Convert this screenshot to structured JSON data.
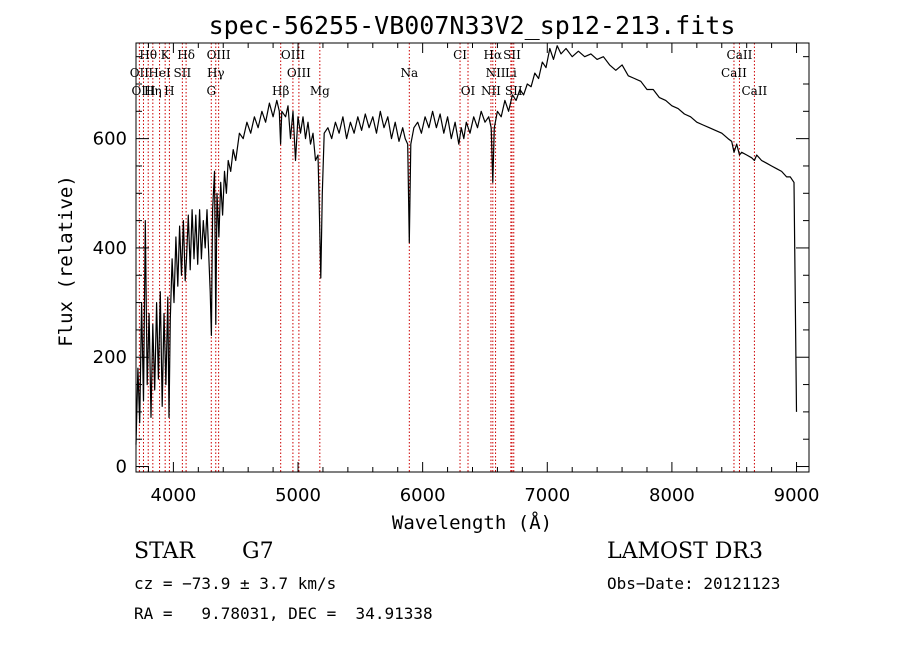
{
  "chart_data": {
    "type": "line",
    "title": "spec-56255-VB007N33V2_sp12-213.fits",
    "xlabel": "Wavelength (Å)",
    "ylabel": "Flux (relative)",
    "xlim": [
      3700,
      9100
    ],
    "ylim": [
      -10,
      775
    ],
    "xticks": [
      4000,
      5000,
      6000,
      7000,
      8000,
      9000
    ],
    "yticks": [
      0,
      200,
      400,
      600
    ],
    "grid": false,
    "series": [
      {
        "name": "flux",
        "points": [
          [
            3700,
            40
          ],
          [
            3715,
            180
          ],
          [
            3730,
            80
          ],
          [
            3745,
            300
          ],
          [
            3760,
            120
          ],
          [
            3775,
            450
          ],
          [
            3790,
            150
          ],
          [
            3805,
            280
          ],
          [
            3820,
            90
          ],
          [
            3835,
            260
          ],
          [
            3850,
            140
          ],
          [
            3865,
            300
          ],
          [
            3880,
            160
          ],
          [
            3895,
            320
          ],
          [
            3910,
            110
          ],
          [
            3925,
            280
          ],
          [
            3940,
            150
          ],
          [
            3955,
            310
          ],
          [
            3965,
            90
          ],
          [
            3975,
            270
          ],
          [
            3990,
            380
          ],
          [
            4005,
            300
          ],
          [
            4020,
            420
          ],
          [
            4035,
            330
          ],
          [
            4050,
            440
          ],
          [
            4065,
            350
          ],
          [
            4080,
            450
          ],
          [
            4095,
            340
          ],
          [
            4105,
            380
          ],
          [
            4120,
            460
          ],
          [
            4135,
            360
          ],
          [
            4150,
            470
          ],
          [
            4165,
            380
          ],
          [
            4180,
            460
          ],
          [
            4195,
            370
          ],
          [
            4210,
            470
          ],
          [
            4225,
            380
          ],
          [
            4240,
            450
          ],
          [
            4255,
            400
          ],
          [
            4270,
            470
          ],
          [
            4285,
            380
          ],
          [
            4295,
            320
          ],
          [
            4305,
            240
          ],
          [
            4315,
            470
          ],
          [
            4330,
            540
          ],
          [
            4340,
            260
          ],
          [
            4350,
            500
          ],
          [
            4365,
            420
          ],
          [
            4380,
            520
          ],
          [
            4395,
            460
          ],
          [
            4410,
            540
          ],
          [
            4425,
            500
          ],
          [
            4440,
            560
          ],
          [
            4460,
            540
          ],
          [
            4480,
            580
          ],
          [
            4500,
            560
          ],
          [
            4530,
            610
          ],
          [
            4560,
            600
          ],
          [
            4590,
            630
          ],
          [
            4620,
            610
          ],
          [
            4650,
            640
          ],
          [
            4680,
            620
          ],
          [
            4710,
            650
          ],
          [
            4740,
            630
          ],
          [
            4770,
            665
          ],
          [
            4800,
            640
          ],
          [
            4830,
            670
          ],
          [
            4850,
            650
          ],
          [
            4860,
            590
          ],
          [
            4870,
            650
          ],
          [
            4900,
            640
          ],
          [
            4920,
            660
          ],
          [
            4940,
            600
          ],
          [
            4960,
            650
          ],
          [
            4980,
            560
          ],
          [
            5000,
            640
          ],
          [
            5020,
            610
          ],
          [
            5040,
            640
          ],
          [
            5060,
            600
          ],
          [
            5080,
            630
          ],
          [
            5100,
            590
          ],
          [
            5120,
            610
          ],
          [
            5140,
            560
          ],
          [
            5160,
            570
          ],
          [
            5170,
            480
          ],
          [
            5183,
            345
          ],
          [
            5195,
            500
          ],
          [
            5210,
            610
          ],
          [
            5240,
            620
          ],
          [
            5270,
            600
          ],
          [
            5300,
            630
          ],
          [
            5330,
            610
          ],
          [
            5360,
            640
          ],
          [
            5390,
            600
          ],
          [
            5420,
            630
          ],
          [
            5450,
            610
          ],
          [
            5480,
            640
          ],
          [
            5510,
            615
          ],
          [
            5540,
            645
          ],
          [
            5570,
            620
          ],
          [
            5600,
            640
          ],
          [
            5630,
            610
          ],
          [
            5660,
            650
          ],
          [
            5690,
            620
          ],
          [
            5720,
            640
          ],
          [
            5750,
            600
          ],
          [
            5780,
            630
          ],
          [
            5810,
            595
          ],
          [
            5840,
            620
          ],
          [
            5860,
            600
          ],
          [
            5880,
            590
          ],
          [
            5893,
            410
          ],
          [
            5905,
            590
          ],
          [
            5930,
            620
          ],
          [
            5960,
            630
          ],
          [
            5990,
            610
          ],
          [
            6020,
            640
          ],
          [
            6050,
            620
          ],
          [
            6080,
            650
          ],
          [
            6110,
            620
          ],
          [
            6140,
            645
          ],
          [
            6170,
            610
          ],
          [
            6200,
            640
          ],
          [
            6230,
            600
          ],
          [
            6260,
            630
          ],
          [
            6290,
            590
          ],
          [
            6310,
            620
          ],
          [
            6330,
            600
          ],
          [
            6350,
            630
          ],
          [
            6380,
            610
          ],
          [
            6410,
            640
          ],
          [
            6440,
            620
          ],
          [
            6470,
            650
          ],
          [
            6500,
            630
          ],
          [
            6530,
            640
          ],
          [
            6550,
            620
          ],
          [
            6563,
            520
          ],
          [
            6575,
            620
          ],
          [
            6600,
            650
          ],
          [
            6630,
            640
          ],
          [
            6660,
            670
          ],
          [
            6690,
            650
          ],
          [
            6720,
            680
          ],
          [
            6750,
            670
          ],
          [
            6780,
            690
          ],
          [
            6810,
            680
          ],
          [
            6840,
            700
          ],
          [
            6870,
            695
          ],
          [
            6900,
            720
          ],
          [
            6930,
            710
          ],
          [
            6960,
            740
          ],
          [
            6990,
            730
          ],
          [
            7020,
            765
          ],
          [
            7050,
            745
          ],
          [
            7080,
            770
          ],
          [
            7110,
            755
          ],
          [
            7150,
            765
          ],
          [
            7200,
            750
          ],
          [
            7250,
            760
          ],
          [
            7300,
            750
          ],
          [
            7350,
            755
          ],
          [
            7400,
            745
          ],
          [
            7450,
            750
          ],
          [
            7500,
            735
          ],
          [
            7550,
            725
          ],
          [
            7600,
            735
          ],
          [
            7650,
            715
          ],
          [
            7700,
            710
          ],
          [
            7750,
            705
          ],
          [
            7800,
            690
          ],
          [
            7850,
            690
          ],
          [
            7900,
            675
          ],
          [
            7950,
            670
          ],
          [
            8000,
            660
          ],
          [
            8050,
            655
          ],
          [
            8100,
            645
          ],
          [
            8150,
            640
          ],
          [
            8200,
            630
          ],
          [
            8250,
            625
          ],
          [
            8300,
            620
          ],
          [
            8350,
            615
          ],
          [
            8400,
            610
          ],
          [
            8450,
            600
          ],
          [
            8480,
            595
          ],
          [
            8498,
            575
          ],
          [
            8520,
            590
          ],
          [
            8542,
            570
          ],
          [
            8560,
            575
          ],
          [
            8600,
            570
          ],
          [
            8640,
            565
          ],
          [
            8662,
            560
          ],
          [
            8680,
            570
          ],
          [
            8720,
            560
          ],
          [
            8760,
            555
          ],
          [
            8800,
            550
          ],
          [
            8840,
            545
          ],
          [
            8880,
            540
          ],
          [
            8920,
            530
          ],
          [
            8950,
            530
          ],
          [
            8980,
            520
          ],
          [
            9000,
            100
          ]
        ]
      }
    ],
    "annotations": [
      {
        "label": "Hθ",
        "x": 3798,
        "row": 0
      },
      {
        "label": "K",
        "x": 3934,
        "row": 0
      },
      {
        "label": "Hδ",
        "x": 4102,
        "row": 0
      },
      {
        "label": "OIII",
        "x": 4363,
        "row": 0
      },
      {
        "label": "OIII",
        "x": 4959,
        "row": 0
      },
      {
        "label": "CI",
        "x": 6300,
        "row": 0
      },
      {
        "label": "Hα",
        "x": 6563,
        "row": 0
      },
      {
        "label": "SII",
        "x": 6717,
        "row": 0
      },
      {
        "label": "CaII",
        "x": 8542,
        "row": 0
      },
      {
        "label": "OII",
        "x": 3727,
        "row": 1
      },
      {
        "label": "HeI",
        "x": 3889,
        "row": 1
      },
      {
        "label": "SII",
        "x": 4072,
        "row": 1
      },
      {
        "label": "Hγ",
        "x": 4340,
        "row": 1
      },
      {
        "label": "OIII",
        "x": 5007,
        "row": 1
      },
      {
        "label": "Na",
        "x": 5893,
        "row": 1
      },
      {
        "label": "NII",
        "x": 6585,
        "row": 1
      },
      {
        "label": "Li",
        "x": 6708,
        "row": 1
      },
      {
        "label": "CaII",
        "x": 8498,
        "row": 1
      },
      {
        "label": "OIII",
        "x": 3760,
        "row": 2
      },
      {
        "label": "Hη",
        "x": 3835,
        "row": 2
      },
      {
        "label": "H",
        "x": 3968,
        "row": 2
      },
      {
        "label": "G",
        "x": 4304,
        "row": 2
      },
      {
        "label": "Hβ",
        "x": 4861,
        "row": 2
      },
      {
        "label": "Mg",
        "x": 5175,
        "row": 2
      },
      {
        "label": "OI",
        "x": 6364,
        "row": 2
      },
      {
        "label": "NII",
        "x": 6548,
        "row": 2
      },
      {
        "label": "SII",
        "x": 6731,
        "row": 2
      },
      {
        "label": "CaII",
        "x": 8662,
        "row": 2
      }
    ],
    "line_markers": [
      3727,
      3760,
      3798,
      3835,
      3889,
      3934,
      3968,
      4072,
      4102,
      4304,
      4340,
      4363,
      4861,
      4959,
      5007,
      5175,
      5893,
      6300,
      6364,
      6548,
      6563,
      6585,
      6708,
      6717,
      6731,
      8498,
      8542,
      8662
    ]
  },
  "info": {
    "object_class": "STAR",
    "subclass": "G7",
    "survey": "LAMOST DR3",
    "cz": "cz = −73.9 ± 3.7 km/s",
    "obs_date": "Obs−Date: 20121123",
    "coords": "RA =   9.78031, DEC =  34.91338"
  },
  "colors": {
    "spectrum": "#000000",
    "marker": "#cc0000"
  }
}
